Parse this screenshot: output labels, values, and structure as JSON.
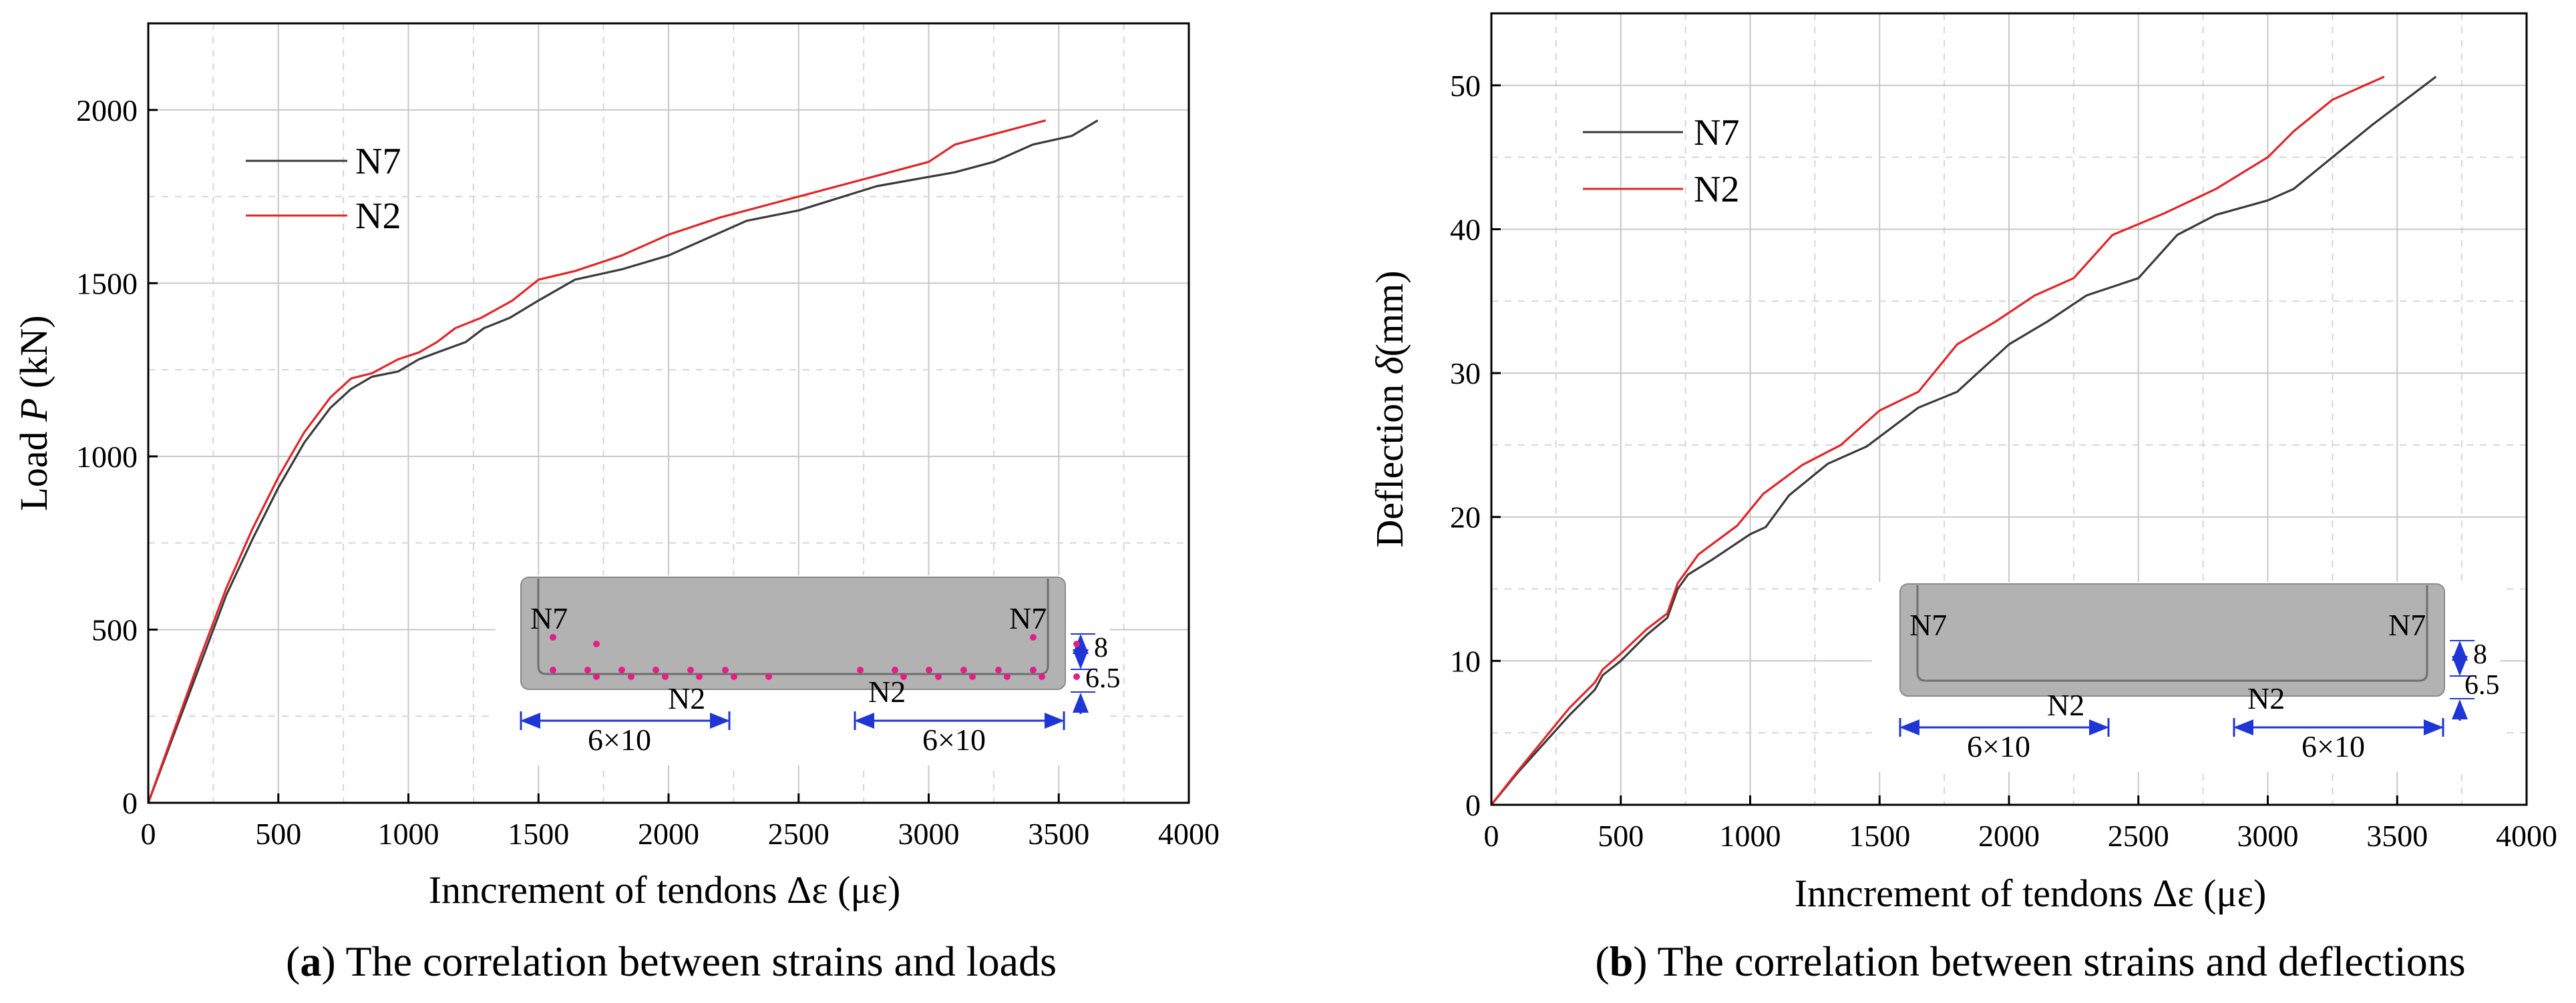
{
  "chart_data": [
    {
      "type": "line",
      "panel_tag": "a",
      "caption": "The correlation between strains and loads",
      "xlabel": "Inncrement of tendons Δε (με)",
      "ylabel_prefix": "Load ",
      "ylabel_var": "P",
      "ylabel_suffix": " (kN)",
      "xlim": [
        0,
        4000
      ],
      "ylim": [
        0,
        2250
      ],
      "xticks": [
        0,
        500,
        1000,
        1500,
        2000,
        2500,
        3000,
        3500,
        4000
      ],
      "yticks": [
        0,
        500,
        1000,
        1500,
        2000
      ],
      "grid": true,
      "legend_position": "top-left",
      "series": [
        {
          "name": "N7",
          "color": "#3a3a3a",
          "points": [
            [
              0,
              0
            ],
            [
              100,
              200
            ],
            [
              200,
              400
            ],
            [
              300,
              600
            ],
            [
              400,
              760
            ],
            [
              500,
              910
            ],
            [
              600,
              1040
            ],
            [
              700,
              1140
            ],
            [
              780,
              1195
            ],
            [
              860,
              1230
            ],
            [
              960,
              1245
            ],
            [
              1040,
              1280
            ],
            [
              1110,
              1300
            ],
            [
              1220,
              1330
            ],
            [
              1290,
              1370
            ],
            [
              1390,
              1400
            ],
            [
              1500,
              1450
            ],
            [
              1640,
              1510
            ],
            [
              1820,
              1540
            ],
            [
              2000,
              1580
            ],
            [
              2300,
              1680
            ],
            [
              2500,
              1710
            ],
            [
              2800,
              1780
            ],
            [
              3100,
              1820
            ],
            [
              3250,
              1850
            ],
            [
              3400,
              1900
            ],
            [
              3550,
              1925
            ],
            [
              3650,
              1970
            ]
          ]
        },
        {
          "name": "N2",
          "color": "#e0262a",
          "points": [
            [
              0,
              0
            ],
            [
              100,
              210
            ],
            [
              200,
              420
            ],
            [
              300,
              620
            ],
            [
              400,
              790
            ],
            [
              500,
              940
            ],
            [
              600,
              1070
            ],
            [
              700,
              1170
            ],
            [
              780,
              1225
            ],
            [
              860,
              1240
            ],
            [
              960,
              1280
            ],
            [
              1040,
              1300
            ],
            [
              1110,
              1330
            ],
            [
              1180,
              1370
            ],
            [
              1280,
              1400
            ],
            [
              1400,
              1450
            ],
            [
              1500,
              1510
            ],
            [
              1640,
              1535
            ],
            [
              1820,
              1580
            ],
            [
              2000,
              1640
            ],
            [
              2200,
              1690
            ],
            [
              2500,
              1750
            ],
            [
              2800,
              1810
            ],
            [
              3000,
              1850
            ],
            [
              3100,
              1900
            ],
            [
              3250,
              1930
            ],
            [
              3450,
              1970
            ]
          ]
        }
      ],
      "inset": {
        "labels_n7": [
          "N7",
          "N7"
        ],
        "label_n2": "N2",
        "dim_left": "6×10",
        "dim_right": "6×10",
        "dim_8": "8",
        "dim_6_5": "6.5"
      }
    },
    {
      "type": "line",
      "panel_tag": "b",
      "caption": "The correlation between strains and deflections",
      "xlabel": "Inncrement of tendons Δε (με)",
      "ylabel_prefix": "Deflection ",
      "ylabel_var": "δ",
      "ylabel_suffix": "(mm)",
      "xlim": [
        0,
        4000
      ],
      "ylim": [
        0,
        55
      ],
      "xticks": [
        0,
        500,
        1000,
        1500,
        2000,
        2500,
        3000,
        3500,
        4000
      ],
      "yticks": [
        0,
        10,
        20,
        30,
        40,
        50
      ],
      "grid": true,
      "legend_position": "top-left",
      "series": [
        {
          "name": "N7",
          "color": "#3a3a3a",
          "points": [
            [
              0,
              0
            ],
            [
              100,
              2.2
            ],
            [
              200,
              4.2
            ],
            [
              300,
              6.2
            ],
            [
              400,
              8
            ],
            [
              430,
              9
            ],
            [
              500,
              10
            ],
            [
              600,
              11.8
            ],
            [
              680,
              13
            ],
            [
              720,
              15
            ],
            [
              760,
              16
            ],
            [
              850,
              17
            ],
            [
              1000,
              18.8
            ],
            [
              1060,
              19.3
            ],
            [
              1150,
              21.5
            ],
            [
              1300,
              23.7
            ],
            [
              1450,
              24.9
            ],
            [
              1650,
              27.6
            ],
            [
              1800,
              28.7
            ],
            [
              2000,
              32
            ],
            [
              2150,
              33.6
            ],
            [
              2300,
              35.4
            ],
            [
              2500,
              36.6
            ],
            [
              2650,
              39.6
            ],
            [
              2800,
              41
            ],
            [
              3000,
              42
            ],
            [
              3100,
              42.8
            ],
            [
              3250,
              45
            ],
            [
              3400,
              47.2
            ],
            [
              3650,
              50.6
            ]
          ]
        },
        {
          "name": "N2",
          "color": "#e0262a",
          "points": [
            [
              0,
              0
            ],
            [
              100,
              2.3
            ],
            [
              200,
              4.5
            ],
            [
              300,
              6.7
            ],
            [
              400,
              8.5
            ],
            [
              430,
              9.4
            ],
            [
              500,
              10.5
            ],
            [
              600,
              12.2
            ],
            [
              680,
              13.3
            ],
            [
              720,
              15.4
            ],
            [
              760,
              16.4
            ],
            [
              800,
              17.4
            ],
            [
              950,
              19.4
            ],
            [
              1050,
              21.6
            ],
            [
              1200,
              23.6
            ],
            [
              1350,
              25
            ],
            [
              1500,
              27.4
            ],
            [
              1650,
              28.7
            ],
            [
              1800,
              32
            ],
            [
              1950,
              33.6
            ],
            [
              2100,
              35.4
            ],
            [
              2250,
              36.6
            ],
            [
              2400,
              39.6
            ],
            [
              2600,
              41.1
            ],
            [
              2800,
              42.8
            ],
            [
              3000,
              45
            ],
            [
              3100,
              46.8
            ],
            [
              3250,
              49
            ],
            [
              3450,
              50.6
            ]
          ]
        }
      ],
      "inset": {
        "labels_n7": [
          "N7",
          "N7"
        ],
        "label_n2": "N2",
        "dim_left": "6×10",
        "dim_right": "6×10",
        "dim_8": "8",
        "dim_6_5": "6.5"
      }
    }
  ]
}
